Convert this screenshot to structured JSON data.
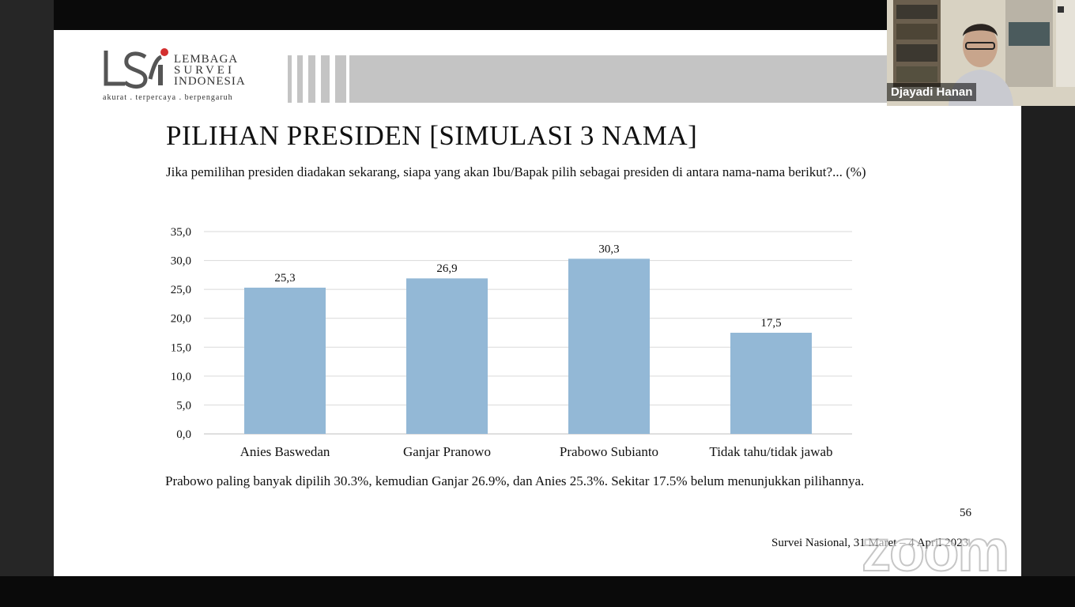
{
  "slide": {
    "logo": {
      "name_lines": [
        "LEMBAGA",
        "SURVEI",
        "INDONESIA"
      ],
      "tagline": "akurat . terpercaya . berpengaruh",
      "accent_color": "#d32f2f"
    },
    "title": "PILIHAN PRESIDEN [SIMULASI 3 NAMA]",
    "question": "Jika pemilihan presiden diadakan sekarang, siapa yang akan Ibu/Bapak pilih sebagai presiden di antara nama-nama berikut?... (%)",
    "summary": "Prabowo paling banyak dipilih 30.3%, kemudian Ganjar 26.9%, dan Anies 25.3%. Sekitar 17.5% belum menunjukkan pilihannya.",
    "page_number": "56",
    "source": "Survei Nasional, 31 Maret – 4 April 2023"
  },
  "chart_data": {
    "type": "bar",
    "categories": [
      "Anies Baswedan",
      "Ganjar Pranowo",
      "Prabowo Subianto",
      "Tidak tahu/tidak jawab"
    ],
    "values": [
      25.3,
      26.9,
      30.3,
      17.5
    ],
    "data_labels": [
      "25,3",
      "26,9",
      "30,3",
      "17,5"
    ],
    "ylim": [
      0,
      35
    ],
    "yticks": [
      "0,0",
      "5,0",
      "10,0",
      "15,0",
      "20,0",
      "25,0",
      "30,0",
      "35,0"
    ],
    "bar_color": "#93b8d6",
    "grid": true
  },
  "video": {
    "participant_name": "Djayadi Hanan"
  },
  "watermark": "zoom"
}
